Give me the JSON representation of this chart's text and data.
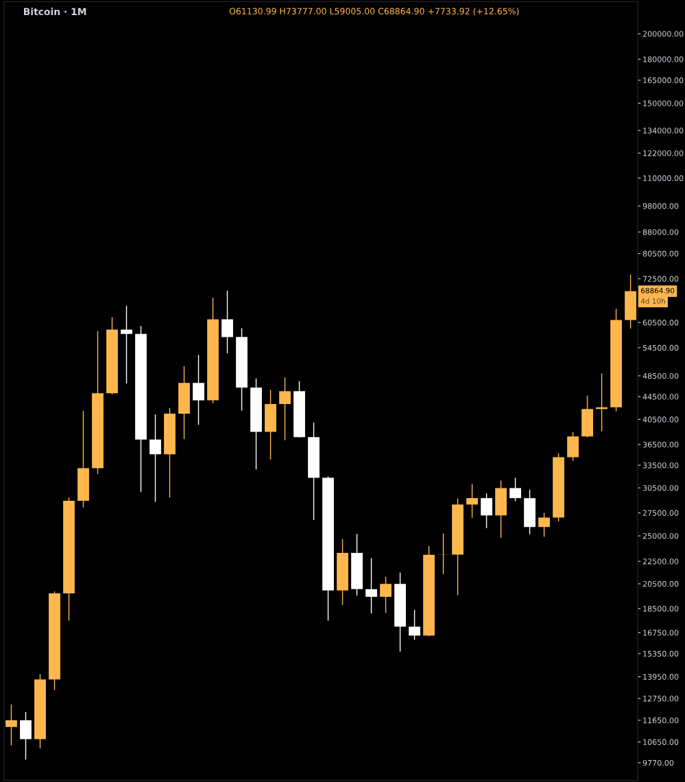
{
  "chart_data": {
    "type": "candlestick",
    "title": "Bitcoin · 1M",
    "categories": [
      null,
      null,
      null,
      null,
      null,
      null,
      null,
      null,
      null,
      null,
      null,
      null,
      null,
      null,
      null,
      null,
      null,
      null,
      null,
      null,
      null,
      null,
      null,
      null,
      null,
      null,
      null,
      null,
      null,
      null,
      null,
      null,
      null,
      null,
      null,
      null,
      null,
      null,
      null,
      null,
      null,
      null,
      null,
      null
    ],
    "ohlc": [
      [
        11335,
        12440,
        10500,
        11649
      ],
      [
        11649,
        12050,
        9900,
        10776
      ],
      [
        10776,
        14100,
        10370,
        13797
      ],
      [
        13797,
        19863,
        13200,
        19700
      ],
      [
        19700,
        29300,
        17600,
        28923
      ],
      [
        28923,
        41950,
        28130,
        33092
      ],
      [
        33092,
        58350,
        32300,
        45135
      ],
      [
        45135,
        61850,
        44950,
        58740
      ],
      [
        58740,
        64850,
        47000,
        57694
      ],
      [
        57694,
        59600,
        30000,
        37253
      ],
      [
        37253,
        41330,
        28800,
        35045
      ],
      [
        35045,
        42450,
        29300,
        41461
      ],
      [
        41461,
        50500,
        37330,
        47100
      ],
      [
        47100,
        52900,
        39600,
        43824
      ],
      [
        43824,
        67000,
        43300,
        61300
      ],
      [
        61300,
        69000,
        53250,
        56950
      ],
      [
        56950,
        59050,
        42000,
        46210
      ],
      [
        46210,
        47990,
        32900,
        38466
      ],
      [
        38466,
        45800,
        34300,
        43160
      ],
      [
        43160,
        48190,
        37150,
        45510
      ],
      [
        45510,
        47450,
        37580,
        37630
      ],
      [
        37630,
        40000,
        26700,
        31801
      ],
      [
        31801,
        31980,
        17600,
        19942
      ],
      [
        19942,
        24670,
        18780,
        23293
      ],
      [
        23293,
        25210,
        19520,
        20050
      ],
      [
        20050,
        22800,
        18130,
        19423
      ],
      [
        19423,
        21100,
        18190,
        20490
      ],
      [
        20490,
        21480,
        15480,
        17164
      ],
      [
        17164,
        18400,
        16260,
        16542
      ],
      [
        16542,
        23960,
        16500,
        23125
      ],
      [
        23125,
        25250,
        21350,
        23141
      ],
      [
        23141,
        29180,
        19550,
        28465
      ],
      [
        28465,
        31000,
        26940,
        29233
      ],
      [
        29233,
        29820,
        25810,
        27210
      ],
      [
        27210,
        31430,
        24800,
        30472
      ],
      [
        30472,
        31800,
        28860,
        29232
      ],
      [
        29232,
        30250,
        25170,
        25941
      ],
      [
        25941,
        27490,
        24900,
        26962
      ],
      [
        26962,
        35200,
        26540,
        34639
      ],
      [
        34639,
        38450,
        34100,
        37723
      ],
      [
        37723,
        44700,
        37600,
        42283
      ],
      [
        42283,
        48970,
        38550,
        42580
      ],
      [
        42580,
        64000,
        41880,
        61130.99
      ],
      [
        61130.99,
        73777,
        59005,
        68864.9
      ]
    ],
    "colors": [
      "#ffb74d",
      "#ffffff",
      "#ffb74d",
      "#ffb74d",
      "#ffb74d",
      "#ffb74d",
      "#ffb74d",
      "#ffb74d",
      "#ffffff",
      "#ffffff",
      "#ffffff",
      "#ffb74d",
      "#ffb74d",
      "#ffffff",
      "#ffb74d",
      "#ffffff",
      "#ffffff",
      "#ffffff",
      "#ffb74d",
      "#ffb74d",
      "#ffffff",
      "#ffffff",
      "#ffffff",
      "#ffb74d",
      "#ffffff",
      "#ffffff",
      "#ffb74d",
      "#ffffff",
      "#ffffff",
      "#ffb74d",
      "#ffb74d",
      "#ffb74d",
      "#ffb74d",
      "#ffffff",
      "#ffb74d",
      "#ffffff",
      "#ffffff",
      "#ffb74d",
      "#ffb74d",
      "#ffb74d",
      "#ffb74d",
      "#ffb74d",
      "#ffb74d",
      "#ffb74d"
    ],
    "log": true,
    "ylim": [
      9080,
      228500
    ],
    "yticks": [
      {
        "value": 9770,
        "label": "9770.00"
      },
      {
        "value": 10650,
        "label": "10650.00"
      },
      {
        "value": 11650,
        "label": "11650.00"
      },
      {
        "value": 12750,
        "label": "12750.00"
      },
      {
        "value": 13950,
        "label": "13950.00"
      },
      {
        "value": 15350,
        "label": "15350.00"
      },
      {
        "value": 16750,
        "label": "16750.00"
      },
      {
        "value": 18500,
        "label": "18500.00"
      },
      {
        "value": 20500,
        "label": "20500.00"
      },
      {
        "value": 22500,
        "label": "22500.00"
      },
      {
        "value": 25000,
        "label": "25000.00"
      },
      {
        "value": 27500,
        "label": "27500.00"
      },
      {
        "value": 30500,
        "label": "30500.00"
      },
      {
        "value": 33500,
        "label": "33500.00"
      },
      {
        "value": 36500,
        "label": "36500.00"
      },
      {
        "value": 40500,
        "label": "40500.00"
      },
      {
        "value": 44500,
        "label": "44500.00"
      },
      {
        "value": 48500,
        "label": "48500.00"
      },
      {
        "value": 54500,
        "label": "54500.00"
      },
      {
        "value": 60500,
        "label": "60500.00"
      },
      {
        "value": 72500,
        "label": "72500.00"
      },
      {
        "value": 80500,
        "label": "80500.00"
      },
      {
        "value": 88000,
        "label": "88000.00"
      },
      {
        "value": 98000,
        "label": "98000.00"
      },
      {
        "value": 110000,
        "label": "110000.00"
      },
      {
        "value": 122000,
        "label": "122000.00"
      },
      {
        "value": 134000,
        "label": "134000.00"
      },
      {
        "value": 150000,
        "label": "150000.00"
      },
      {
        "value": 165000,
        "label": "165000.00"
      },
      {
        "value": 180000,
        "label": "180000.00"
      },
      {
        "value": 200000,
        "label": "200000.00"
      }
    ],
    "tick_labels": "y",
    "grid": false,
    "annotations": [
      "O61130.99 H73777.00 L59005.00 C68864.90 +7733.92 (+12.65%)",
      "68864.90",
      "4d 10h"
    ]
  }
}
